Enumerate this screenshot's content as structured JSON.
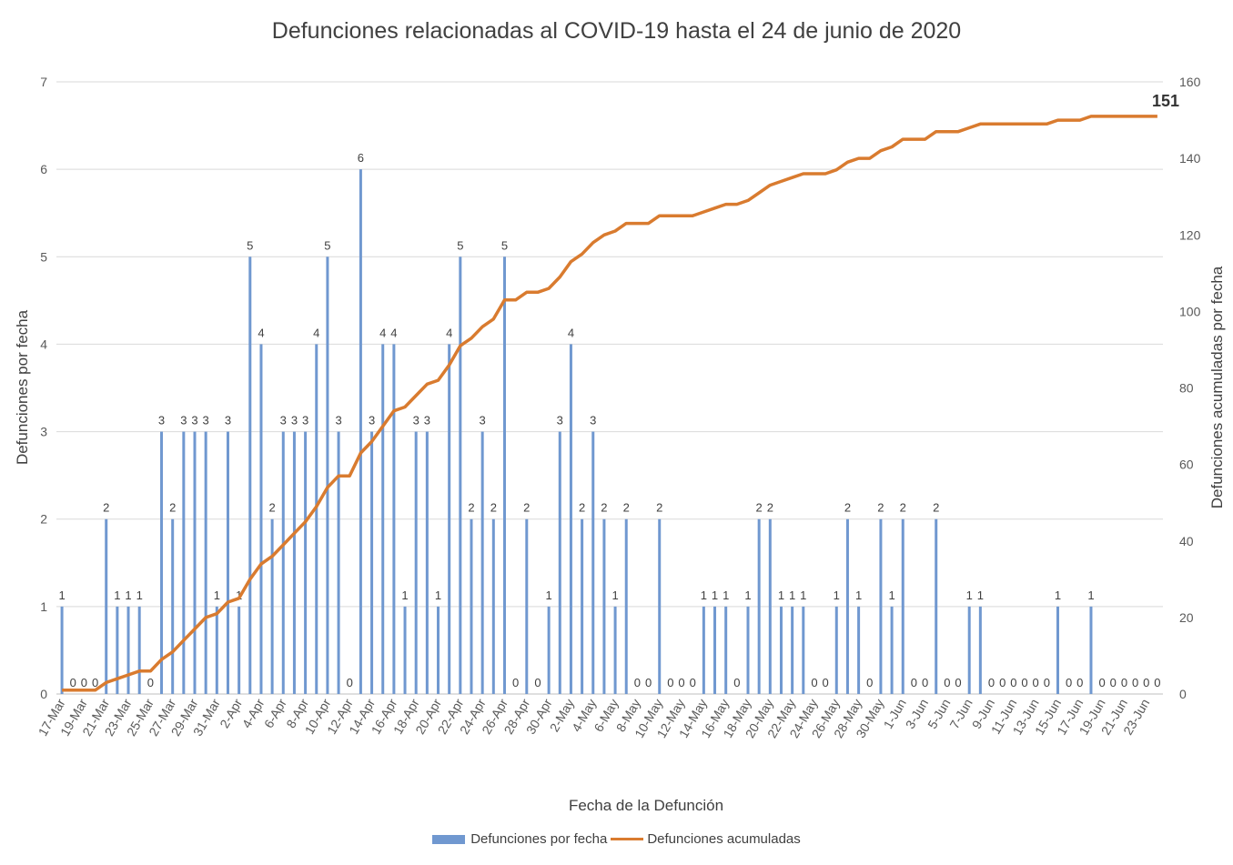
{
  "chart_data": {
    "type": "bar+line",
    "title": "Defunciones relacionadas al COVID-19 hasta el 24 de junio de 2020",
    "xlabel": "Fecha de la Defunción",
    "ylabel_left": "Defunciones por fecha",
    "ylabel_right": "Defunciones acumuladas por fecha",
    "ylim_left": [
      0,
      7
    ],
    "ylim_right": [
      0,
      160
    ],
    "yticks_left": [
      "0",
      "1",
      "2",
      "3",
      "4",
      "5",
      "6",
      "7"
    ],
    "yticks_right": [
      "0",
      "20",
      "40",
      "60",
      "80",
      "100",
      "120",
      "140",
      "160"
    ],
    "grid": "horizontal",
    "legend_position": "bottom",
    "colors": {
      "bars": "#7098d0",
      "line": "#d97b2f"
    },
    "categories": [
      "17-Mar",
      "18-Mar",
      "19-Mar",
      "20-Mar",
      "21-Mar",
      "22-Mar",
      "23-Mar",
      "24-Mar",
      "25-Mar",
      "26-Mar",
      "27-Mar",
      "28-Mar",
      "29-Mar",
      "30-Mar",
      "31-Mar",
      "1-Apr",
      "2-Apr",
      "3-Apr",
      "4-Apr",
      "5-Apr",
      "6-Apr",
      "7-Apr",
      "8-Apr",
      "9-Apr",
      "10-Apr",
      "11-Apr",
      "12-Apr",
      "13-Apr",
      "14-Apr",
      "15-Apr",
      "16-Apr",
      "17-Apr",
      "18-Apr",
      "19-Apr",
      "20-Apr",
      "21-Apr",
      "22-Apr",
      "23-Apr",
      "24-Apr",
      "25-Apr",
      "26-Apr",
      "27-Apr",
      "28-Apr",
      "29-Apr",
      "30-Apr",
      "1-May",
      "2-May",
      "3-May",
      "4-May",
      "5-May",
      "6-May",
      "7-May",
      "8-May",
      "9-May",
      "10-May",
      "11-May",
      "12-May",
      "13-May",
      "14-May",
      "15-May",
      "16-May",
      "17-May",
      "18-May",
      "19-May",
      "20-May",
      "21-May",
      "22-May",
      "23-May",
      "24-May",
      "25-May",
      "26-May",
      "27-May",
      "28-May",
      "29-May",
      "30-May",
      "31-May",
      "1-Jun",
      "2-Jun",
      "3-Jun",
      "4-Jun",
      "5-Jun",
      "6-Jun",
      "7-Jun",
      "8-Jun",
      "9-Jun",
      "10-Jun",
      "11-Jun",
      "12-Jun",
      "13-Jun",
      "14-Jun",
      "15-Jun",
      "16-Jun",
      "17-Jun",
      "18-Jun",
      "19-Jun",
      "20-Jun",
      "21-Jun",
      "22-Jun",
      "23-Jun",
      "24-Jun"
    ],
    "xtick_labels": [
      "17-Mar",
      "19-Mar",
      "21-Mar",
      "23-Mar",
      "25-Mar",
      "27-Mar",
      "29-Mar",
      "31-Mar",
      "2-Apr",
      "4-Apr",
      "6-Apr",
      "8-Apr",
      "10-Apr",
      "12-Apr",
      "14-Apr",
      "16-Apr",
      "18-Apr",
      "20-Apr",
      "22-Apr",
      "24-Apr",
      "26-Apr",
      "28-Apr",
      "30-Apr",
      "2-May",
      "4-May",
      "6-May",
      "8-May",
      "10-May",
      "12-May",
      "14-May",
      "16-May",
      "18-May",
      "20-May",
      "22-May",
      "24-May",
      "26-May",
      "28-May",
      "30-May",
      "1-Jun",
      "3-Jun",
      "5-Jun",
      "7-Jun",
      "9-Jun",
      "11-Jun",
      "13-Jun",
      "15-Jun",
      "17-Jun",
      "19-Jun",
      "21-Jun",
      "23-Jun"
    ],
    "series": [
      {
        "name": "Defunciones por fecha",
        "type": "bar",
        "values": [
          1,
          0,
          0,
          0,
          2,
          1,
          1,
          1,
          0,
          3,
          2,
          3,
          3,
          3,
          1,
          3,
          1,
          5,
          4,
          2,
          3,
          3,
          3,
          4,
          5,
          3,
          0,
          6,
          3,
          4,
          4,
          1,
          3,
          3,
          1,
          4,
          5,
          2,
          3,
          2,
          5,
          0,
          2,
          0,
          1,
          3,
          4,
          2,
          3,
          2,
          1,
          2,
          0,
          0,
          2,
          0,
          0,
          0,
          1,
          1,
          1,
          0,
          1,
          2,
          2,
          1,
          1,
          1,
          0,
          0,
          1,
          2,
          1,
          0,
          2,
          1,
          2,
          0,
          0,
          2,
          0,
          0,
          1,
          1,
          0,
          0,
          0,
          0,
          0,
          0,
          1,
          0,
          0,
          1,
          0,
          0,
          0,
          0,
          0,
          0
        ]
      },
      {
        "name": "Defunciones acumuladas",
        "type": "line",
        "values": [
          1,
          1,
          1,
          1,
          3,
          4,
          5,
          6,
          6,
          9,
          11,
          14,
          17,
          20,
          21,
          24,
          25,
          30,
          34,
          36,
          39,
          42,
          45,
          49,
          54,
          57,
          57,
          63,
          66,
          70,
          74,
          75,
          78,
          81,
          82,
          86,
          91,
          93,
          96,
          98,
          103,
          103,
          105,
          105,
          106,
          109,
          113,
          115,
          118,
          120,
          121,
          123,
          123,
          123,
          125,
          125,
          125,
          125,
          126,
          127,
          128,
          128,
          129,
          131,
          133,
          134,
          135,
          136,
          136,
          136,
          137,
          139,
          140,
          140,
          142,
          143,
          145,
          145,
          145,
          147,
          147,
          147,
          148,
          149,
          149,
          149,
          149,
          149,
          149,
          149,
          150,
          150,
          150,
          151,
          151,
          151,
          151,
          151,
          151,
          151
        ]
      }
    ],
    "annotation": "151"
  }
}
